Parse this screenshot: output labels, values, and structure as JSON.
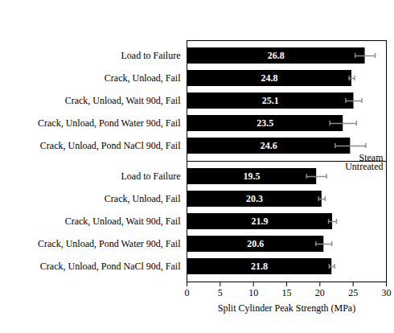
{
  "chart_data": [
    {
      "type": "bar",
      "orientation": "horizontal",
      "annotation": "Steam",
      "categories": [
        "Load to Failure",
        "Crack, Unload, Fail",
        "Crack, Unload, Wait 90d, Fail",
        "Crack, Unload, Pond Water 90d, Fail",
        "Crack, Unload, Pond NaCl 90d, Fail"
      ],
      "values": [
        26.8,
        24.8,
        25.1,
        23.5,
        24.6
      ],
      "errors": [
        1.5,
        0.4,
        1.2,
        2.0,
        2.3
      ],
      "color": "#000000",
      "data_labels": true,
      "tick_labels": "y",
      "xlim": [
        0,
        30
      ],
      "xticks": [
        0,
        5,
        10,
        15,
        20,
        25,
        30
      ]
    },
    {
      "type": "bar",
      "orientation": "horizontal",
      "annotation": "Untreated",
      "categories": [
        "Load to Failure",
        "Crack, Unload, Fail",
        "Crack, Unload, Wait 90d, Fail",
        "Crack, Unload, Pond Water 90d, Fail",
        "Crack, Unload, Pond NaCl 90d, Fail"
      ],
      "values": [
        19.5,
        20.3,
        21.9,
        20.6,
        21.8
      ],
      "errors": [
        1.5,
        0.5,
        0.6,
        1.2,
        0.4
      ],
      "color": "#000000",
      "data_labels": true,
      "xlabel": "Split Cylinder Peak Strength (MPa)",
      "xlim": [
        0,
        30
      ],
      "xticks": [
        0,
        5,
        10,
        15,
        20,
        25,
        30
      ]
    }
  ]
}
